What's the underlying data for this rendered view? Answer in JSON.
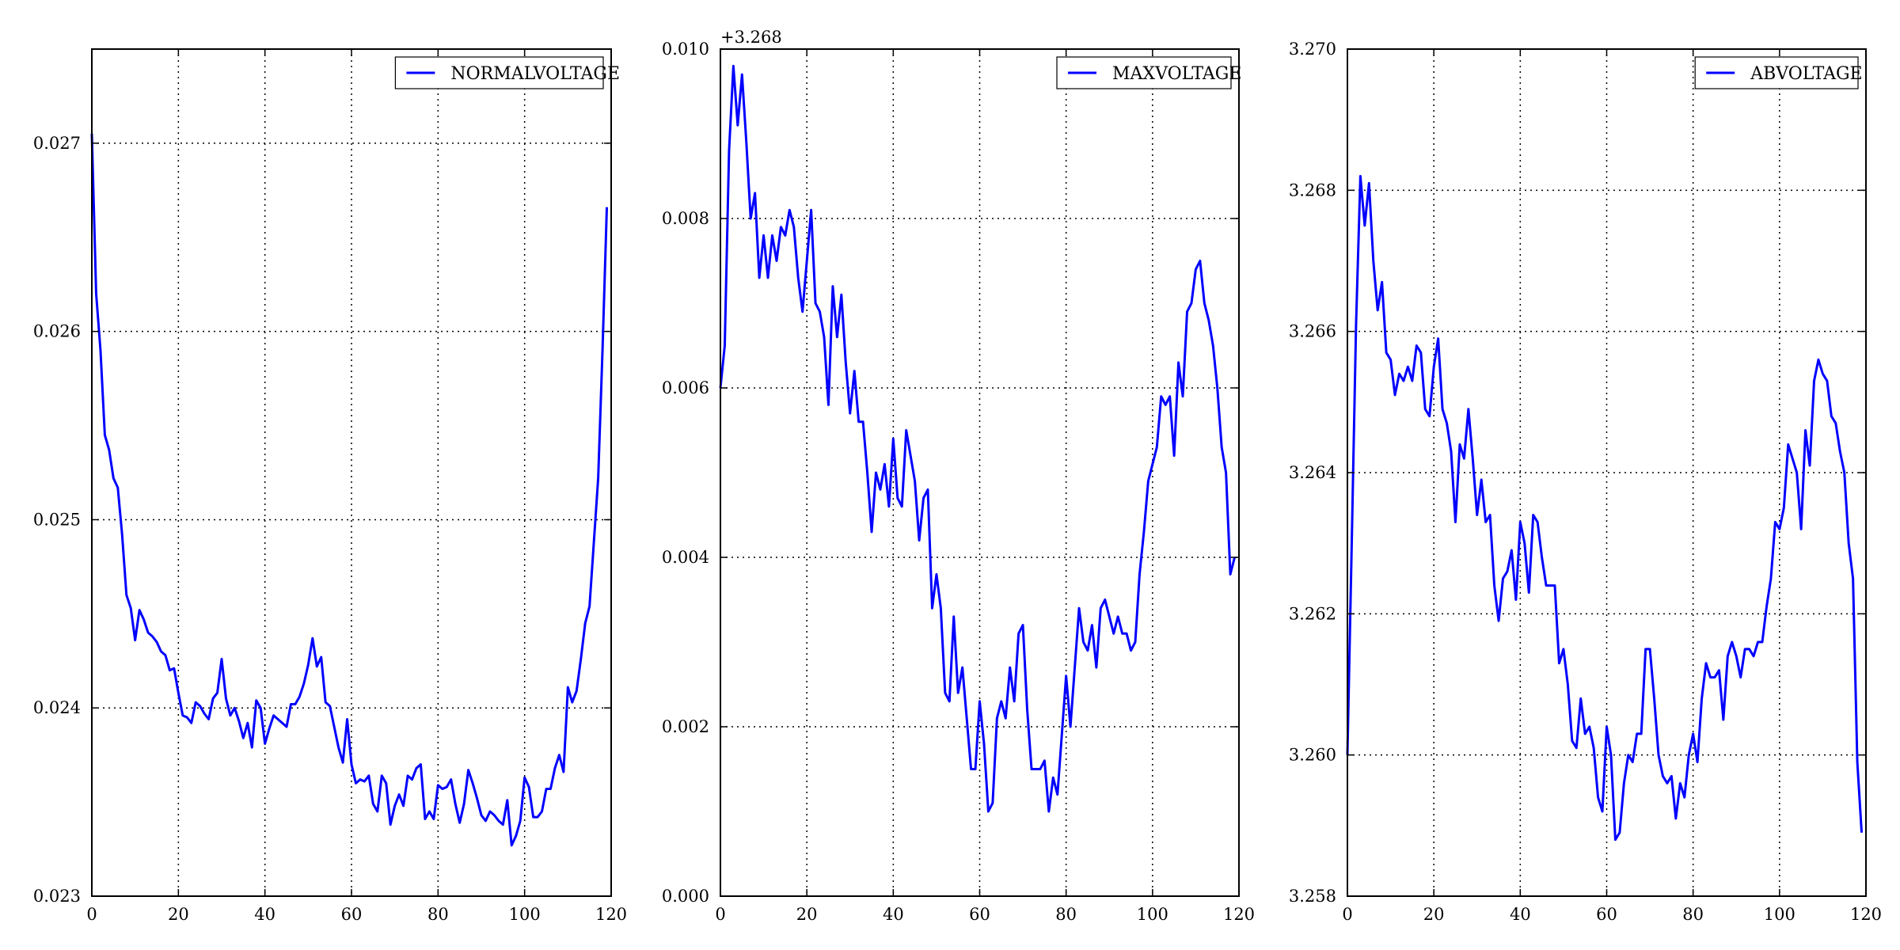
{
  "chart_data": [
    {
      "type": "line",
      "title": "",
      "xlabel": "",
      "ylabel": "",
      "legend_position": "top-right",
      "grid": true,
      "color": "#0000ff",
      "xlim": [
        0,
        120
      ],
      "ylim": [
        0.023,
        0.0275
      ],
      "x_ticks": [
        0,
        20,
        40,
        60,
        80,
        100,
        120
      ],
      "y_ticks": [
        0.023,
        0.024,
        0.025,
        0.026,
        0.027
      ],
      "x_tick_labels": [
        "0",
        "20",
        "40",
        "60",
        "80",
        "100",
        "120"
      ],
      "y_tick_labels": [
        "0.023",
        "0.024",
        "0.025",
        "0.026",
        "0.027"
      ],
      "offset_text": "",
      "series": [
        {
          "name": "NORMALVOLTAGE",
          "x": [
            0,
            1,
            2,
            3,
            4,
            5,
            6,
            7,
            8,
            9,
            10,
            11,
            12,
            13,
            14,
            15,
            16,
            17,
            18,
            19,
            20,
            21,
            22,
            23,
            24,
            25,
            26,
            27,
            28,
            29,
            30,
            31,
            32,
            33,
            34,
            35,
            36,
            37,
            38,
            39,
            40,
            41,
            42,
            43,
            44,
            45,
            46,
            47,
            48,
            49,
            50,
            51,
            52,
            53,
            54,
            55,
            56,
            57,
            58,
            59,
            60,
            61,
            62,
            63,
            64,
            65,
            66,
            67,
            68,
            69,
            70,
            71,
            72,
            73,
            74,
            75,
            76,
            77,
            78,
            79,
            80,
            81,
            82,
            83,
            84,
            85,
            86,
            87,
            88,
            89,
            90,
            91,
            92,
            93,
            94,
            95,
            96,
            97,
            98,
            99,
            100,
            101,
            102,
            103,
            104,
            105,
            106,
            107,
            108,
            109,
            110,
            111,
            112,
            113,
            114,
            115,
            116,
            117,
            118,
            119
          ],
          "values": [
            0.02705,
            0.0262,
            0.0259,
            0.02545,
            0.02537,
            0.02522,
            0.02517,
            0.02492,
            0.0246,
            0.02453,
            0.02436,
            0.02452,
            0.02447,
            0.0244,
            0.02438,
            0.02435,
            0.0243,
            0.02428,
            0.0242,
            0.02421,
            0.02408,
            0.02396,
            0.02395,
            0.02392,
            0.02403,
            0.02401,
            0.02397,
            0.02394,
            0.02405,
            0.02408,
            0.02426,
            0.02405,
            0.02396,
            0.024,
            0.02393,
            0.02384,
            0.02392,
            0.02379,
            0.02404,
            0.024,
            0.02381,
            0.02389,
            0.02396,
            0.02394,
            0.02392,
            0.0239,
            0.02402,
            0.02402,
            0.02406,
            0.02413,
            0.02423,
            0.02437,
            0.02422,
            0.02427,
            0.02403,
            0.02401,
            0.0239,
            0.02379,
            0.02371,
            0.02394,
            0.0237,
            0.0236,
            0.02362,
            0.02361,
            0.02364,
            0.02349,
            0.02345,
            0.02364,
            0.0236,
            0.02338,
            0.02348,
            0.02354,
            0.02348,
            0.02364,
            0.02362,
            0.02368,
            0.0237,
            0.02341,
            0.02345,
            0.02341,
            0.02359,
            0.02357,
            0.02358,
            0.02362,
            0.02349,
            0.02339,
            0.02349,
            0.02367,
            0.0236,
            0.02352,
            0.02343,
            0.0234,
            0.02345,
            0.02343,
            0.0234,
            0.02338,
            0.02351,
            0.02327,
            0.02332,
            0.0234,
            0.02363,
            0.02358,
            0.02342,
            0.02342,
            0.02345,
            0.02357,
            0.02357,
            0.02368,
            0.02375,
            0.02366,
            0.02411,
            0.02403,
            0.02409,
            0.02426,
            0.02445,
            0.02454,
            0.02488,
            0.02522,
            0.0259,
            0.02666
          ]
        }
      ]
    },
    {
      "type": "line",
      "title": "",
      "xlabel": "",
      "ylabel": "",
      "legend_position": "top-right",
      "grid": true,
      "color": "#0000ff",
      "xlim": [
        0,
        120
      ],
      "ylim": [
        0.0,
        0.01
      ],
      "x_ticks": [
        0,
        20,
        40,
        60,
        80,
        100,
        120
      ],
      "y_ticks": [
        0.0,
        0.002,
        0.004,
        0.006,
        0.008,
        0.01
      ],
      "x_tick_labels": [
        "0",
        "20",
        "40",
        "60",
        "80",
        "100",
        "120"
      ],
      "y_tick_labels": [
        "0.000",
        "0.002",
        "0.004",
        "0.006",
        "0.008",
        "0.010"
      ],
      "offset_text": "+3.268",
      "series": [
        {
          "name": "MAXVOLTAGE",
          "x": [
            0,
            1,
            2,
            3,
            4,
            5,
            6,
            7,
            8,
            9,
            10,
            11,
            12,
            13,
            14,
            15,
            16,
            17,
            18,
            19,
            20,
            21,
            22,
            23,
            24,
            25,
            26,
            27,
            28,
            29,
            30,
            31,
            32,
            33,
            34,
            35,
            36,
            37,
            38,
            39,
            40,
            41,
            42,
            43,
            44,
            45,
            46,
            47,
            48,
            49,
            50,
            51,
            52,
            53,
            54,
            55,
            56,
            57,
            58,
            59,
            60,
            61,
            62,
            63,
            64,
            65,
            66,
            67,
            68,
            69,
            70,
            71,
            72,
            73,
            74,
            75,
            76,
            77,
            78,
            79,
            80,
            81,
            82,
            83,
            84,
            85,
            86,
            87,
            88,
            89,
            90,
            91,
            92,
            93,
            94,
            95,
            96,
            97,
            98,
            99,
            100,
            101,
            102,
            103,
            104,
            105,
            106,
            107,
            108,
            109,
            110,
            111,
            112,
            113,
            114,
            115,
            116,
            117,
            118,
            119
          ],
          "values": [
            0.006,
            0.0065,
            0.0088,
            0.0098,
            0.0091,
            0.0097,
            0.0089,
            0.008,
            0.0083,
            0.0073,
            0.0078,
            0.0073,
            0.0078,
            0.0075,
            0.0079,
            0.0078,
            0.0081,
            0.0079,
            0.0073,
            0.0069,
            0.0075,
            0.0081,
            0.007,
            0.0069,
            0.0066,
            0.0058,
            0.0072,
            0.0066,
            0.0071,
            0.0063,
            0.0057,
            0.0062,
            0.0056,
            0.0056,
            0.005,
            0.0043,
            0.005,
            0.0048,
            0.0051,
            0.0046,
            0.0054,
            0.0047,
            0.0046,
            0.0055,
            0.0052,
            0.0049,
            0.0042,
            0.0047,
            0.0048,
            0.0034,
            0.0038,
            0.0034,
            0.0024,
            0.0023,
            0.0033,
            0.0024,
            0.0027,
            0.0021,
            0.0015,
            0.0015,
            0.0023,
            0.0018,
            0.001,
            0.0011,
            0.0021,
            0.0023,
            0.0021,
            0.0027,
            0.0023,
            0.0031,
            0.0032,
            0.0022,
            0.0015,
            0.0015,
            0.0015,
            0.0016,
            0.001,
            0.0014,
            0.0012,
            0.0019,
            0.0026,
            0.002,
            0.0027,
            0.0034,
            0.003,
            0.0029,
            0.0032,
            0.0027,
            0.0034,
            0.0035,
            0.0033,
            0.0031,
            0.0033,
            0.0031,
            0.0031,
            0.0029,
            0.003,
            0.0038,
            0.0043,
            0.0049,
            0.0051,
            0.0053,
            0.0059,
            0.0058,
            0.0059,
            0.0052,
            0.0063,
            0.0059,
            0.0069,
            0.007,
            0.0074,
            0.0075,
            0.007,
            0.0068,
            0.0065,
            0.006,
            0.0053,
            0.005,
            0.0038,
            0.004
          ]
        }
      ]
    },
    {
      "type": "line",
      "title": "",
      "xlabel": "",
      "ylabel": "",
      "legend_position": "top-right",
      "grid": true,
      "color": "#0000ff",
      "xlim": [
        0,
        120
      ],
      "ylim": [
        3.258,
        3.27
      ],
      "x_ticks": [
        0,
        20,
        40,
        60,
        80,
        100,
        120
      ],
      "y_ticks": [
        3.258,
        3.26,
        3.262,
        3.264,
        3.266,
        3.268,
        3.27
      ],
      "x_tick_labels": [
        "0",
        "20",
        "40",
        "60",
        "80",
        "100",
        "120"
      ],
      "y_tick_labels": [
        "3.258",
        "3.260",
        "3.262",
        "3.264",
        "3.266",
        "3.268",
        "3.270"
      ],
      "offset_text": "",
      "series": [
        {
          "name": "ABVOLTAGE",
          "x": [
            0,
            1,
            2,
            3,
            4,
            5,
            6,
            7,
            8,
            9,
            10,
            11,
            12,
            13,
            14,
            15,
            16,
            17,
            18,
            19,
            20,
            21,
            22,
            23,
            24,
            25,
            26,
            27,
            28,
            29,
            30,
            31,
            32,
            33,
            34,
            35,
            36,
            37,
            38,
            39,
            40,
            41,
            42,
            43,
            44,
            45,
            46,
            47,
            48,
            49,
            50,
            51,
            52,
            53,
            54,
            55,
            56,
            57,
            58,
            59,
            60,
            61,
            62,
            63,
            64,
            65,
            66,
            67,
            68,
            69,
            70,
            71,
            72,
            73,
            74,
            75,
            76,
            77,
            78,
            79,
            80,
            81,
            82,
            83,
            84,
            85,
            86,
            87,
            88,
            89,
            90,
            91,
            92,
            93,
            94,
            95,
            96,
            97,
            98,
            99,
            100,
            101,
            102,
            103,
            104,
            105,
            106,
            107,
            108,
            109,
            110,
            111,
            112,
            113,
            114,
            115,
            116,
            117,
            118,
            119
          ],
          "values": [
            3.26,
            3.263,
            3.2661,
            3.2682,
            3.2675,
            3.2681,
            3.267,
            3.2663,
            3.2667,
            3.2657,
            3.2656,
            3.2651,
            3.2654,
            3.2653,
            3.2655,
            3.2653,
            3.2658,
            3.2657,
            3.2649,
            3.2648,
            3.2655,
            3.2659,
            3.2649,
            3.2647,
            3.2643,
            3.2633,
            3.2644,
            3.2642,
            3.2649,
            3.2642,
            3.2634,
            3.2639,
            3.2633,
            3.2634,
            3.2624,
            3.2619,
            3.2625,
            3.2626,
            3.2629,
            3.2622,
            3.2633,
            3.263,
            3.2623,
            3.2634,
            3.2633,
            3.2628,
            3.2624,
            3.2624,
            3.2624,
            3.2613,
            3.2615,
            3.261,
            3.2602,
            3.2601,
            3.2608,
            3.2603,
            3.2604,
            3.2601,
            3.2594,
            3.2592,
            3.2604,
            3.26,
            3.2588,
            3.2589,
            3.2596,
            3.26,
            3.2599,
            3.2603,
            3.2603,
            3.2615,
            3.2615,
            3.2608,
            3.26,
            3.2597,
            3.2596,
            3.2597,
            3.2591,
            3.2596,
            3.2594,
            3.26,
            3.2603,
            3.2599,
            3.2608,
            3.2613,
            3.2611,
            3.2611,
            3.2612,
            3.2605,
            3.2614,
            3.2616,
            3.2614,
            3.2611,
            3.2615,
            3.2615,
            3.2614,
            3.2616,
            3.2616,
            3.2621,
            3.2625,
            3.2633,
            3.2632,
            3.2635,
            3.2644,
            3.2642,
            3.264,
            3.2632,
            3.2646,
            3.2641,
            3.2653,
            3.2656,
            3.2654,
            3.2653,
            3.2648,
            3.2647,
            3.2643,
            3.264,
            3.263,
            3.2625,
            3.2599,
            3.2589
          ]
        }
      ]
    }
  ]
}
